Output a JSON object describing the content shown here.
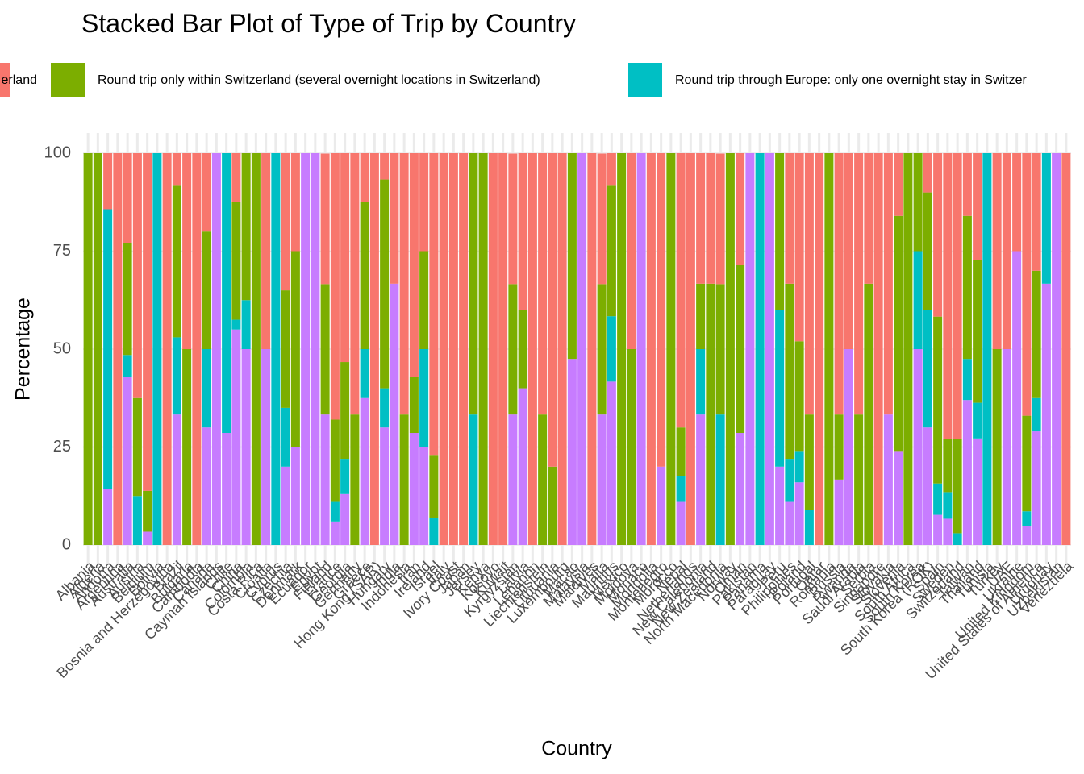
{
  "chart_data": {
    "type": "stacked_bar",
    "title": "Stacked Bar Plot of Type of Trip by Country",
    "x_label": "Country",
    "y_label": "Percentage",
    "categories": [
      "Albania",
      "Algeria",
      "Andorra",
      "Argentina",
      "Australia",
      "Austria",
      "Belgium",
      "Bolivia",
      "Bosnia and Herzegovina",
      "Brazil",
      "Bulgaria",
      "Cambodia",
      "Canada",
      "Cayman Islands",
      "Chile",
      "China",
      "Colombia",
      "Costa Rica",
      "Croatia",
      "Cyprus",
      "Czechia",
      "Denmark",
      "Ecuador",
      "Egypt",
      "Finland",
      "France",
      "Georgia",
      "Germany",
      "Greece",
      "Hong Kong (SAR)",
      "Hungary",
      "India",
      "Indonesia",
      "Iran",
      "Ireland",
      "Israel",
      "Italy",
      "Ivory Coast",
      "Japan",
      "Jersey",
      "Kenya",
      "Kosovo",
      "Kuwait",
      "Kyrgyzstan",
      "Latvia",
      "Lebanon",
      "Liechtenstein",
      "Lithuania",
      "Luxembourg",
      "Macao",
      "Malaysia",
      "Maldives",
      "Malta",
      "Mauritius",
      "Mexico",
      "Moldova",
      "Monaco",
      "Mongolia",
      "Montenegro",
      "Morocco",
      "Nepal",
      "Netherlands",
      "New Caledonia",
      "New Zealand",
      "North Macedonia",
      "Norway",
      "Oman",
      "Pakistan",
      "Panama",
      "Paraguay",
      "Peru",
      "Philippines",
      "Poland",
      "Portugal",
      "Qatar",
      "Romania",
      "Russia",
      "Rwanda",
      "Saudi Arabia",
      "Serbia",
      "Singapore",
      "Slovakia",
      "Slovenia",
      "South Africa",
      "South Korea",
      "South Korea (ROK)",
      "Spain",
      "Sweden",
      "Switzerland",
      "Taiwan",
      "Thailand",
      "Tunisia",
      "Turkey",
      "UAE",
      "Ukraine",
      "United Kingdom",
      "United States of America",
      "Uruguay",
      "Uzbekistan",
      "Venezuela"
    ],
    "series": [
      {
        "name": "erland",
        "color": "#F8766D",
        "values": [
          0,
          0,
          14.3,
          100,
          23,
          62.5,
          86.2,
          0,
          100,
          8.3,
          50,
          100,
          20,
          0,
          0,
          12.5,
          0,
          0,
          50,
          0,
          35,
          25,
          0,
          0,
          33.3,
          68,
          53.3,
          66.7,
          12.5,
          100,
          6.7,
          33.3,
          66.7,
          57.1,
          25,
          77,
          100,
          100,
          100,
          0,
          0,
          100,
          100,
          33.3,
          40,
          100,
          66.7,
          80,
          100,
          0,
          0,
          100,
          33.3,
          8.3,
          0,
          50,
          0,
          100,
          80,
          0,
          70,
          100,
          33.3,
          33.3,
          33.3,
          0,
          28.6,
          0,
          0,
          0,
          0,
          33.3,
          48,
          66.7,
          100,
          0,
          66.7,
          50,
          66.7,
          33.3,
          100,
          66.7,
          16,
          0,
          0,
          10,
          41.7,
          73,
          73,
          16,
          27.3,
          0,
          50,
          50,
          25,
          67,
          30,
          0,
          0,
          100
        ]
      },
      {
        "name": "Round trip only within Switzerland (several overnight locations in Switzerland)",
        "color": "#7CAE00",
        "values": [
          100,
          100,
          0,
          0,
          28.5,
          25,
          10.4,
          0,
          0,
          38.7,
          50,
          0,
          30,
          0,
          0,
          30,
          37.5,
          100,
          0,
          0,
          30,
          50,
          0,
          0,
          33.3,
          21,
          24.7,
          33.3,
          37.5,
          0,
          53.3,
          0,
          33.3,
          14.3,
          25,
          16,
          0,
          0,
          0,
          66.7,
          100,
          0,
          0,
          33.3,
          20,
          0,
          33.3,
          20,
          0,
          52.5,
          0,
          0,
          33.3,
          33.3,
          100,
          50,
          0,
          0,
          0,
          100,
          12.5,
          0,
          16.7,
          66.7,
          33.3,
          100,
          42.8,
          0,
          0,
          0,
          40,
          44.7,
          28,
          24.3,
          0,
          100,
          16.6,
          0,
          33.3,
          66.7,
          0,
          0,
          60,
          100,
          25,
          30,
          42.6,
          13.5,
          24,
          36.5,
          36.4,
          0,
          50,
          0,
          0,
          24.4,
          32.5,
          0,
          0,
          0
        ]
      },
      {
        "name": "Round trip through Europe: only one overnight stay in Switzer",
        "color": "#00BFC4",
        "values": [
          0,
          0,
          71.4,
          0,
          5.5,
          12.5,
          0,
          100,
          0,
          19.7,
          0,
          0,
          20,
          0,
          71.4,
          2.5,
          12.5,
          0,
          0,
          100,
          15,
          0,
          0,
          0,
          0,
          5,
          9,
          0,
          12.5,
          0,
          10,
          0,
          0,
          0,
          25,
          7,
          0,
          0,
          0,
          33.3,
          0,
          0,
          0,
          0,
          0,
          0,
          0,
          0,
          0,
          0,
          0,
          0,
          0,
          16.7,
          0,
          0,
          0,
          0,
          0,
          0,
          6.5,
          0,
          16.7,
          0,
          33.3,
          0,
          0,
          0,
          100,
          0,
          40,
          11,
          8,
          9,
          0,
          0,
          0,
          0,
          0,
          0,
          0,
          0,
          0,
          0,
          25,
          30,
          8,
          6.8,
          3,
          10.5,
          9.1,
          100,
          0,
          0,
          0,
          3.8,
          8.5,
          33.3,
          0,
          0
        ]
      },
      {
        "color": "#C77CFF",
        "values": [
          0,
          0,
          14.3,
          0,
          43,
          0,
          3.4,
          0,
          0,
          33.3,
          0,
          0,
          30,
          100,
          28.6,
          55,
          50,
          0,
          50,
          0,
          20,
          25,
          100,
          100,
          33.3,
          6,
          13,
          0,
          37.5,
          0,
          30,
          66.7,
          0,
          28.6,
          25,
          0,
          0,
          0,
          0,
          0,
          0,
          0,
          0,
          33.3,
          40,
          0,
          0,
          0,
          0,
          47.5,
          100,
          0,
          33.3,
          41.7,
          0,
          0,
          100,
          0,
          20,
          0,
          11,
          0,
          33.3,
          0,
          0,
          0,
          28.6,
          100,
          0,
          100,
          20,
          11,
          16,
          0,
          0,
          0,
          16.7,
          50,
          0,
          0,
          0,
          33.3,
          24,
          0,
          50,
          30,
          7.7,
          6.7,
          0,
          37,
          27.2,
          0,
          0,
          50,
          75,
          4.8,
          29,
          66.7,
          100,
          0
        ]
      }
    ],
    "ylim": [
      0,
      100
    ],
    "yticks": [
      0,
      25,
      50,
      75,
      100
    ],
    "grid": true,
    "legend": "top"
  }
}
